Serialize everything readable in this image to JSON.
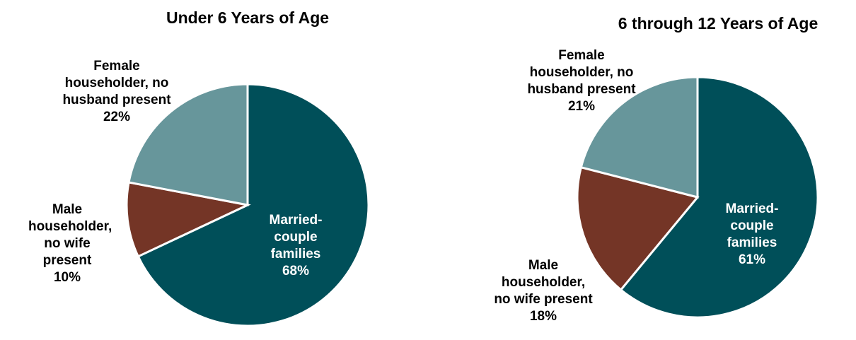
{
  "chart_data": [
    {
      "type": "pie",
      "title": "Under 6 Years of Age",
      "categories": [
        "Married-couple families",
        "Male householder, no wife present",
        "Female householder, no husband present"
      ],
      "values": [
        68,
        10,
        22
      ],
      "value_labels": [
        "68%",
        "10%",
        "22%"
      ],
      "colors": [
        "#004f59",
        "#743526",
        "#67969b"
      ]
    },
    {
      "type": "pie",
      "title": "6 through 12 Years of Age",
      "categories": [
        "Married-couple families",
        "Male householder, no wife present",
        "Female householder, no husband present"
      ],
      "values": [
        61,
        18,
        21
      ],
      "value_labels": [
        "61%",
        "18%",
        "21%"
      ],
      "colors": [
        "#004f59",
        "#743526",
        "#67969b"
      ]
    }
  ]
}
